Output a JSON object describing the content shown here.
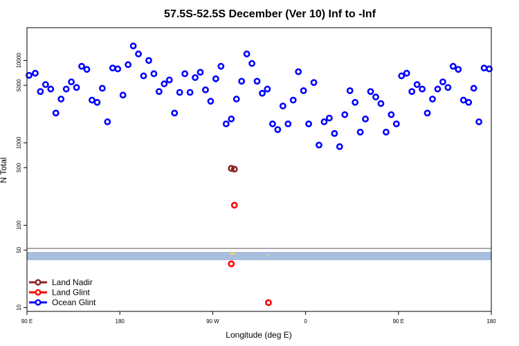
{
  "chart_data": {
    "type": "scatter",
    "title": "57.5S-52.5S December (Ver 10)   Inf to -Inf",
    "xlabel": "Longitude (deg E)",
    "ylabel": "N Total",
    "x_ticks": [
      {
        "value": 90,
        "label": "90 E"
      },
      {
        "value": 180,
        "label": "180"
      },
      {
        "value": 270,
        "label": "90 W"
      },
      {
        "value": 360,
        "label": "0"
      },
      {
        "value": 450,
        "label": "90 E"
      },
      {
        "value": 540,
        "label": "180"
      }
    ],
    "xlim": [
      90,
      540
    ],
    "y_scale": "log",
    "ylim": [
      9,
      25000
    ],
    "y_ticks": [
      10,
      50,
      100,
      500,
      1000,
      5000,
      10000
    ],
    "legend_position": "bottom-left",
    "series": [
      {
        "name": "Land Nadir",
        "color": "#8b2323",
        "points": [
          [
            288,
            490
          ],
          [
            291,
            480
          ]
        ]
      },
      {
        "name": "Land Glint",
        "color": "#ff0000",
        "points": [
          [
            291,
            175
          ],
          [
            288,
            34
          ],
          [
            324,
            11.5
          ]
        ]
      },
      {
        "name": "Ocean Glint",
        "color": "#0000ff",
        "points": [
          [
            92,
            6600
          ],
          [
            98,
            7000
          ],
          [
            103,
            4200
          ],
          [
            108,
            5100
          ],
          [
            113,
            4500
          ],
          [
            118,
            2300
          ],
          [
            123,
            3400
          ],
          [
            128,
            4500
          ],
          [
            133,
            5500
          ],
          [
            138,
            4700
          ],
          [
            143,
            8500
          ],
          [
            148,
            7800
          ],
          [
            153,
            3300
          ],
          [
            158,
            3100
          ],
          [
            163,
            4600
          ],
          [
            168,
            1800
          ],
          [
            173,
            8100
          ],
          [
            178,
            7900
          ],
          [
            183,
            3800
          ],
          [
            188,
            8900
          ],
          [
            193,
            15000
          ],
          [
            198,
            12000
          ],
          [
            203,
            6500
          ],
          [
            208,
            10000
          ],
          [
            213,
            6900
          ],
          [
            218,
            4200
          ],
          [
            223,
            5200
          ],
          [
            228,
            5800
          ],
          [
            233,
            2300
          ],
          [
            238,
            4100
          ],
          [
            243,
            6900
          ],
          [
            248,
            4100
          ],
          [
            253,
            6200
          ],
          [
            258,
            7200
          ],
          [
            263,
            4400
          ],
          [
            268,
            3200
          ],
          [
            273,
            6000
          ],
          [
            278,
            8500
          ],
          [
            283,
            1700
          ],
          [
            288,
            1950
          ],
          [
            293,
            3400
          ],
          [
            298,
            5600
          ],
          [
            303,
            12000
          ],
          [
            308,
            9200
          ],
          [
            313,
            5600
          ],
          [
            318,
            4000
          ],
          [
            323,
            4500
          ],
          [
            328,
            1700
          ],
          [
            333,
            1450
          ],
          [
            338,
            2800
          ],
          [
            343,
            1700
          ],
          [
            348,
            3300
          ],
          [
            353,
            7300
          ],
          [
            358,
            4300
          ],
          [
            363,
            1700
          ],
          [
            368,
            5400
          ],
          [
            373,
            940
          ],
          [
            378,
            1800
          ],
          [
            383,
            2000
          ],
          [
            388,
            1300
          ],
          [
            393,
            900
          ],
          [
            398,
            2200
          ],
          [
            403,
            4300
          ],
          [
            408,
            3100
          ],
          [
            413,
            1350
          ],
          [
            418,
            1950
          ],
          [
            423,
            4200
          ],
          [
            428,
            3600
          ],
          [
            433,
            3000
          ],
          [
            438,
            1350
          ],
          [
            443,
            2200
          ],
          [
            448,
            1700
          ],
          [
            453,
            6500
          ],
          [
            458,
            7000
          ],
          [
            463,
            4200
          ],
          [
            468,
            5100
          ],
          [
            473,
            4500
          ],
          [
            478,
            2300
          ],
          [
            483,
            3400
          ],
          [
            488,
            4500
          ],
          [
            493,
            5500
          ],
          [
            498,
            4700
          ],
          [
            503,
            8500
          ],
          [
            508,
            7800
          ],
          [
            513,
            3300
          ],
          [
            518,
            3100
          ],
          [
            523,
            4600
          ],
          [
            528,
            1800
          ],
          [
            533,
            8100
          ],
          [
            538,
            7900
          ]
        ]
      }
    ]
  }
}
